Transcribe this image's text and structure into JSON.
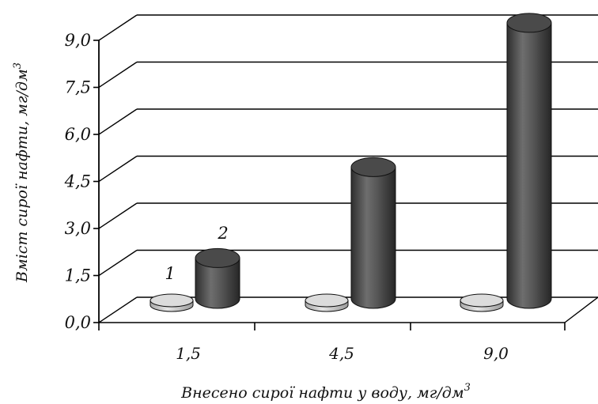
{
  "chart_data": {
    "type": "bar",
    "style": "3d-cylinder",
    "categories": [
      "1,5",
      "4,5",
      "9,0"
    ],
    "series": [
      {
        "name": "1",
        "values": [
          0.1,
          0.1,
          0.1
        ],
        "color": "#d6d6d6"
      },
      {
        "name": "2",
        "values": [
          1.3,
          4.2,
          8.8
        ],
        "color": "#5a5a5a"
      }
    ],
    "ylim": [
      0,
      9
    ],
    "yticks": [
      "0,0",
      "1,5",
      "3,0",
      "4,5",
      "6,0",
      "7,5",
      "9,0"
    ],
    "ytick_values": [
      0,
      1.5,
      3,
      4.5,
      6,
      7.5,
      9
    ],
    "xlabel": "Внесено сирої нафти у воду, мг/дм",
    "xlabel_sup": "3",
    "ylabel": "Вміст сирої нафти, мг/дм",
    "ylabel_sup": "3",
    "grid": true,
    "legend": "inline-labels"
  }
}
